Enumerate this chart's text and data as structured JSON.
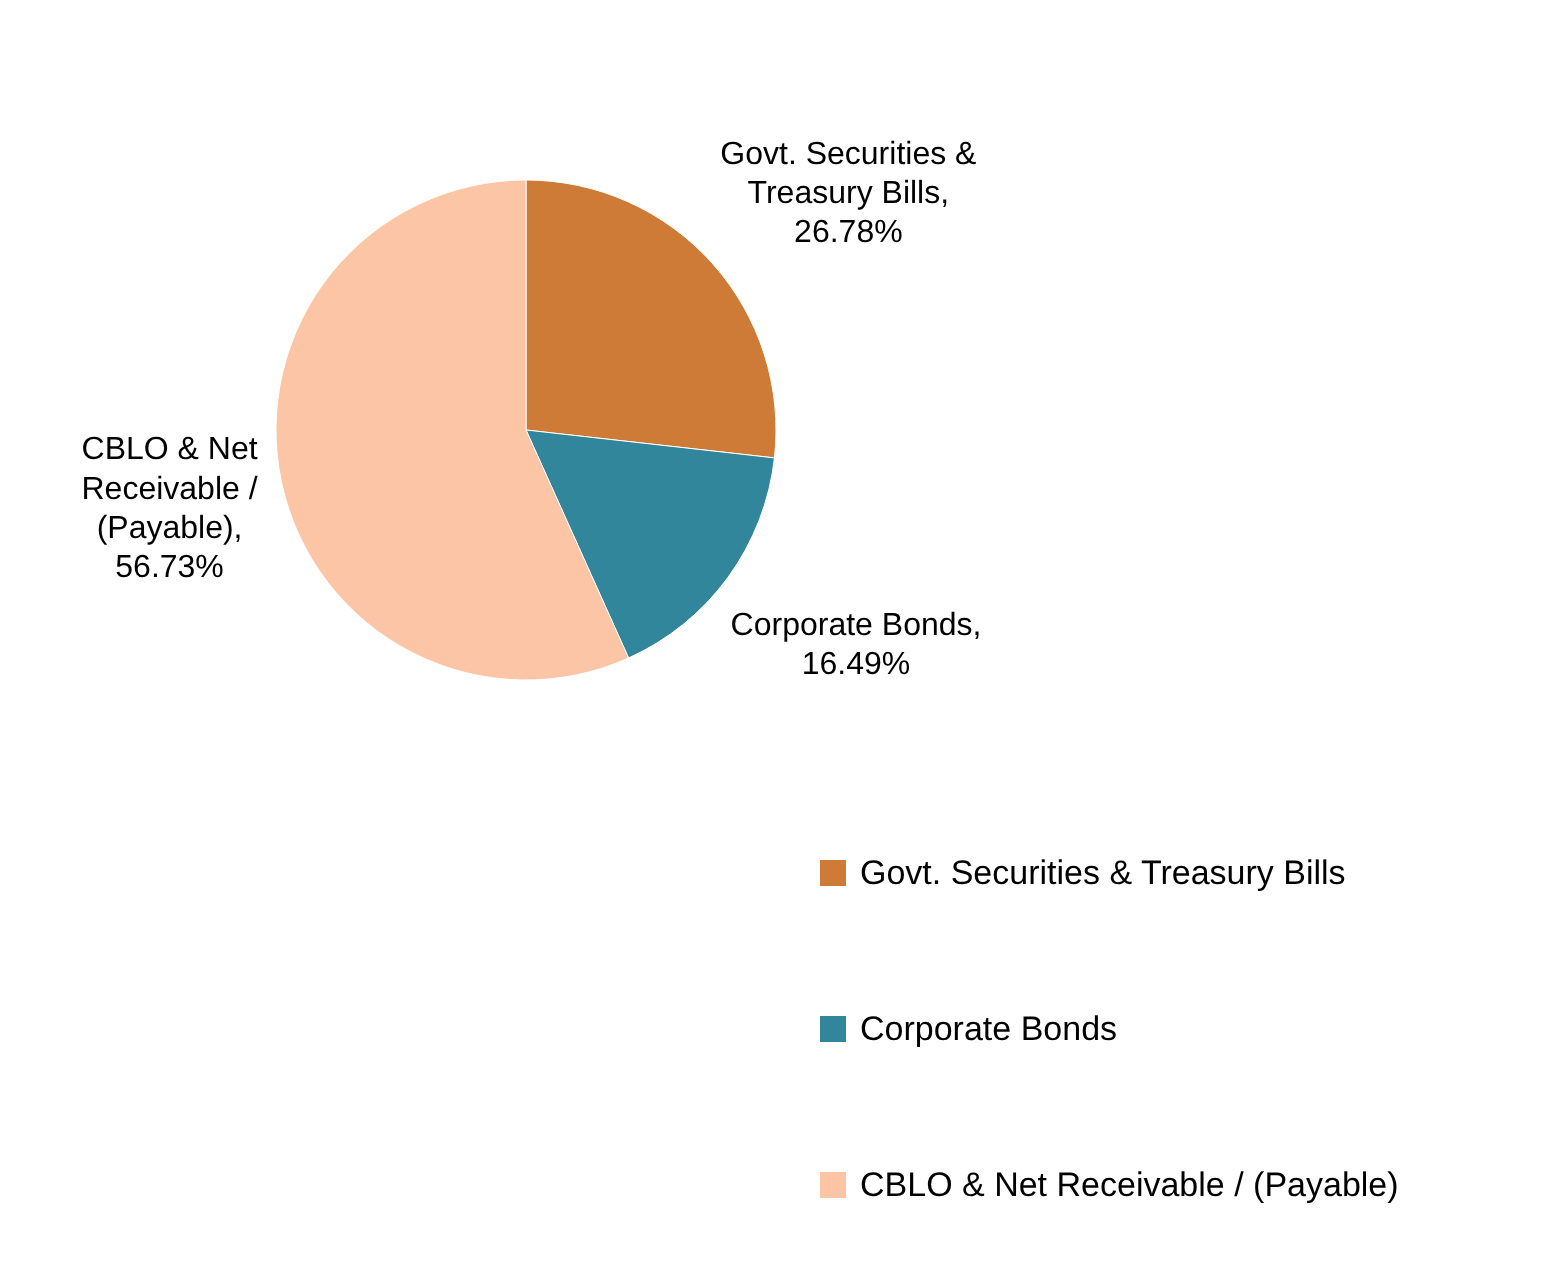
{
  "chart_data": {
    "type": "pie",
    "categories": [
      "Govt. Securities & Treasury Bills",
      "Corporate Bonds",
      "CBLO & Net Receivable / (Payable)"
    ],
    "values": [
      26.78,
      16.49,
      56.73
    ],
    "colors": [
      "#cd7b37",
      "#31869b",
      "#fcc5a5"
    ],
    "value_labels": [
      "Govt. Securities & Treasury Bills, 26.78%",
      "Corporate Bonds, 16.49%",
      "CBLO & Net Receivable / (Payable), 56.73%"
    ],
    "legend": "bottom right"
  }
}
